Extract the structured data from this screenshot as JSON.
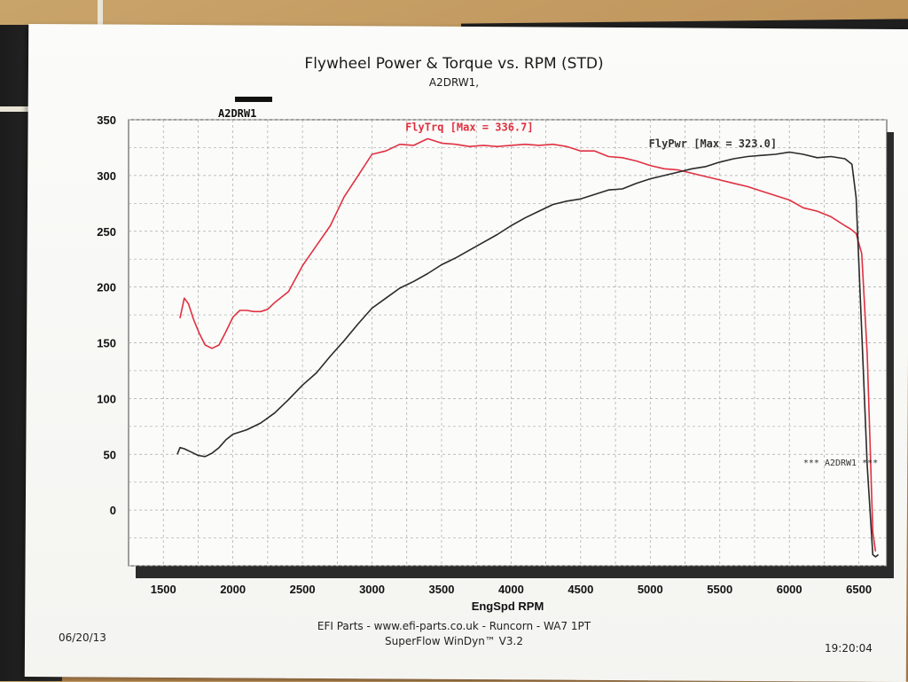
{
  "header": {
    "title": "Flywheel Power & Torque vs. RPM (STD)",
    "subtitle": "A2DRW1,"
  },
  "legend": {
    "label": "A2DRW1",
    "color": "#1a1a1a"
  },
  "footer": {
    "line1": "EFI Parts - www.efi-parts.co.uk - Runcorn - WA7 1PT",
    "line2": "SuperFlow WinDyn™ V3.2",
    "date": "06/20/13",
    "time": "19:20:04"
  },
  "chart_data": {
    "type": "line",
    "title": "Flywheel Power & Torque vs. RPM (STD)",
    "xlabel": "EngSpd RPM",
    "ylabel": "",
    "xlim": [
      1250,
      6700
    ],
    "ylim": [
      -50,
      350
    ],
    "xticks": [
      1500,
      2000,
      2500,
      3000,
      3500,
      4000,
      4500,
      5000,
      5500,
      6000,
      6500
    ],
    "yticks": [
      0,
      50,
      100,
      150,
      200,
      250,
      300,
      350
    ],
    "grid": true,
    "series": [
      {
        "name": "FlyTrq",
        "label": "FlyTrq [Max = 336.7]",
        "color": "#e03040",
        "x": [
          1620,
          1650,
          1680,
          1720,
          1760,
          1800,
          1850,
          1900,
          1950,
          2000,
          2050,
          2100,
          2150,
          2200,
          2250,
          2300,
          2400,
          2500,
          2600,
          2700,
          2800,
          2900,
          3000,
          3100,
          3200,
          3300,
          3400,
          3500,
          3600,
          3700,
          3800,
          3900,
          4000,
          4100,
          4200,
          4300,
          4400,
          4500,
          4600,
          4700,
          4800,
          4900,
          5000,
          5100,
          5200,
          5300,
          5400,
          5500,
          5600,
          5700,
          5800,
          5900,
          6000,
          6100,
          6200,
          6300,
          6400,
          6440,
          6480,
          6520,
          6560,
          6580,
          6600,
          6620
        ],
        "y": [
          172,
          190,
          185,
          170,
          158,
          148,
          145,
          148,
          160,
          173,
          179,
          179,
          178,
          178,
          180,
          186,
          196,
          219,
          237,
          255,
          281,
          300,
          319,
          322,
          328,
          327,
          333,
          329,
          328,
          326,
          327,
          326,
          327,
          328,
          327,
          328,
          326,
          322,
          322,
          317,
          316,
          313,
          309,
          306,
          305,
          302,
          299,
          296,
          293,
          290,
          286,
          282,
          278,
          271,
          268,
          263,
          255,
          252,
          248,
          230,
          140,
          60,
          -20,
          -37
        ]
      },
      {
        "name": "FlyPwr",
        "label": "FlyPwr [Max = 323.0]",
        "color": "#2a2a2a",
        "x": [
          1600,
          1620,
          1650,
          1700,
          1750,
          1800,
          1850,
          1900,
          1950,
          2000,
          2050,
          2100,
          2200,
          2300,
          2400,
          2500,
          2600,
          2700,
          2800,
          2900,
          3000,
          3100,
          3200,
          3300,
          3400,
          3500,
          3600,
          3700,
          3800,
          3900,
          4000,
          4100,
          4200,
          4300,
          4400,
          4500,
          4600,
          4700,
          4800,
          4900,
          5000,
          5100,
          5200,
          5300,
          5400,
          5500,
          5600,
          5700,
          5800,
          5900,
          6000,
          6100,
          6200,
          6300,
          6400,
          6450,
          6480,
          6520,
          6560,
          6600,
          6620,
          6640
        ],
        "y": [
          50,
          56,
          55,
          52,
          49,
          48,
          51,
          56,
          63,
          68,
          70,
          72,
          78,
          87,
          99,
          112,
          123,
          138,
          152,
          167,
          181,
          190,
          199,
          205,
          212,
          220,
          226,
          233,
          240,
          247,
          255,
          262,
          268,
          274,
          277,
          279,
          283,
          287,
          288,
          293,
          297,
          300,
          303,
          306,
          308,
          312,
          315,
          317,
          318,
          319,
          321,
          319,
          316,
          317,
          315,
          310,
          280,
          160,
          40,
          -40,
          -42,
          -40
        ]
      }
    ],
    "annotations": [
      {
        "text": "*** A2DRW1 ***"
      }
    ]
  }
}
